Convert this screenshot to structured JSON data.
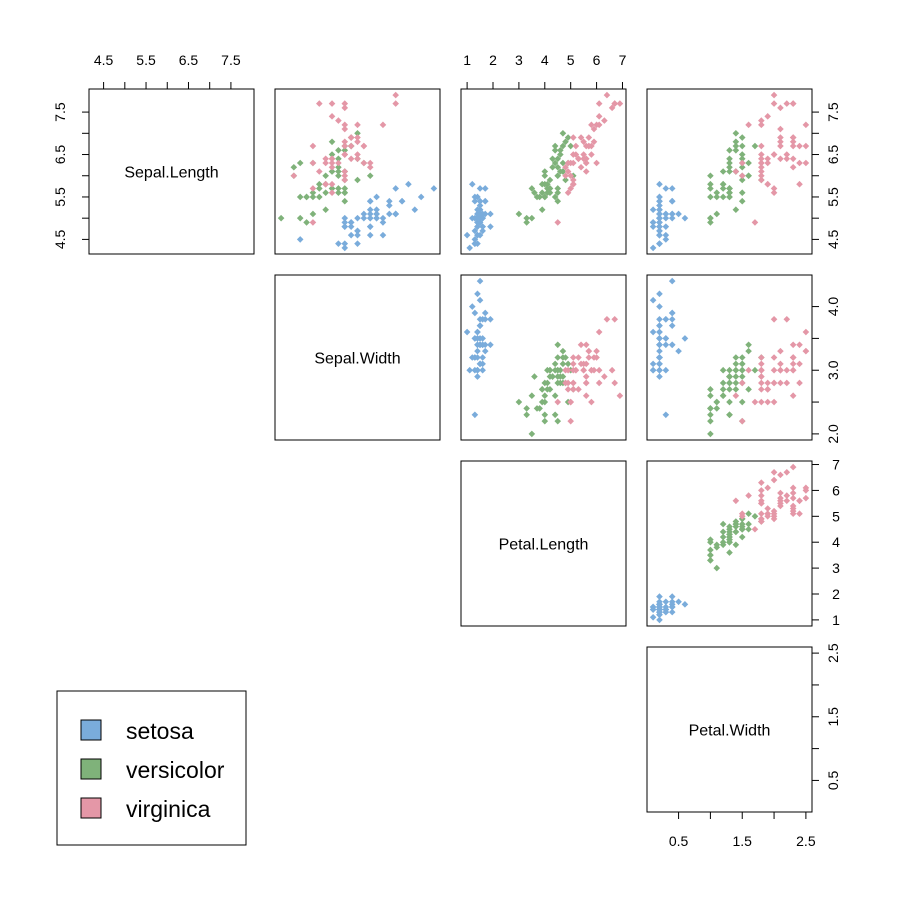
{
  "chart_data": {
    "type": "scatter",
    "title": "",
    "variables": [
      {
        "name": "Sepal.Length",
        "range": [
          4.3,
          7.9
        ],
        "ticks": [
          4.5,
          5.0,
          5.5,
          6.0,
          6.5,
          7.0,
          7.5
        ],
        "tick_labels": {
          "4.5": "4.5",
          "5.5": "5.5",
          "6.5": "6.5",
          "7.5": "7.5"
        }
      },
      {
        "name": "Sepal.Width",
        "range": [
          2.0,
          4.4
        ],
        "ticks": [
          2.0,
          2.5,
          3.0,
          3.5,
          4.0
        ],
        "tick_labels": {
          "2.0": "2.0",
          "3.0": "3.0",
          "4.0": "4.0"
        }
      },
      {
        "name": "Petal.Length",
        "range": [
          1.0,
          6.9
        ],
        "ticks": [
          1,
          2,
          3,
          4,
          5,
          6,
          7
        ],
        "tick_labels": {
          "1": "1",
          "2": "2",
          "3": "3",
          "4": "4",
          "5": "5",
          "6": "6",
          "7": "7"
        }
      },
      {
        "name": "Petal.Width",
        "range": [
          0.1,
          2.5
        ],
        "ticks": [
          0.5,
          1.0,
          1.5,
          2.0,
          2.5
        ],
        "tick_labels": {
          "0.5": "0.5",
          "1.5": "1.5",
          "2.5": "2.5"
        }
      }
    ],
    "series": [
      {
        "name": "setosa",
        "color": "#7aacdb",
        "points": [
          [
            5.1,
            3.5,
            1.4,
            0.2
          ],
          [
            4.9,
            3.0,
            1.4,
            0.2
          ],
          [
            4.7,
            3.2,
            1.3,
            0.2
          ],
          [
            4.6,
            3.1,
            1.5,
            0.2
          ],
          [
            5.0,
            3.6,
            1.4,
            0.2
          ],
          [
            5.4,
            3.9,
            1.7,
            0.4
          ],
          [
            4.6,
            3.4,
            1.4,
            0.3
          ],
          [
            5.0,
            3.4,
            1.5,
            0.2
          ],
          [
            4.4,
            2.9,
            1.4,
            0.2
          ],
          [
            4.9,
            3.1,
            1.5,
            0.1
          ],
          [
            5.4,
            3.7,
            1.5,
            0.2
          ],
          [
            4.8,
            3.4,
            1.6,
            0.2
          ],
          [
            4.8,
            3.0,
            1.4,
            0.1
          ],
          [
            4.3,
            3.0,
            1.1,
            0.1
          ],
          [
            5.8,
            4.0,
            1.2,
            0.2
          ],
          [
            5.7,
            4.4,
            1.5,
            0.4
          ],
          [
            5.4,
            3.9,
            1.3,
            0.4
          ],
          [
            5.1,
            3.5,
            1.4,
            0.3
          ],
          [
            5.7,
            3.8,
            1.7,
            0.3
          ],
          [
            5.1,
            3.8,
            1.5,
            0.3
          ],
          [
            5.4,
            3.4,
            1.7,
            0.2
          ],
          [
            5.1,
            3.7,
            1.5,
            0.4
          ],
          [
            4.6,
            3.6,
            1.0,
            0.2
          ],
          [
            5.1,
            3.3,
            1.7,
            0.5
          ],
          [
            4.8,
            3.4,
            1.9,
            0.2
          ],
          [
            5.0,
            3.0,
            1.6,
            0.2
          ],
          [
            5.0,
            3.4,
            1.6,
            0.4
          ],
          [
            5.2,
            3.5,
            1.5,
            0.2
          ],
          [
            5.2,
            3.4,
            1.4,
            0.2
          ],
          [
            4.7,
            3.2,
            1.6,
            0.2
          ],
          [
            4.8,
            3.1,
            1.6,
            0.2
          ],
          [
            5.4,
            3.4,
            1.5,
            0.4
          ],
          [
            5.2,
            4.1,
            1.5,
            0.1
          ],
          [
            5.5,
            4.2,
            1.4,
            0.2
          ],
          [
            4.9,
            3.1,
            1.5,
            0.2
          ],
          [
            5.0,
            3.2,
            1.2,
            0.2
          ],
          [
            5.5,
            3.5,
            1.3,
            0.2
          ],
          [
            4.9,
            3.6,
            1.4,
            0.1
          ],
          [
            4.4,
            3.0,
            1.3,
            0.2
          ],
          [
            5.1,
            3.4,
            1.5,
            0.2
          ],
          [
            5.0,
            3.5,
            1.3,
            0.3
          ],
          [
            4.5,
            2.3,
            1.3,
            0.3
          ],
          [
            4.4,
            3.2,
            1.3,
            0.2
          ],
          [
            5.0,
            3.5,
            1.6,
            0.6
          ],
          [
            5.1,
            3.8,
            1.9,
            0.4
          ],
          [
            4.8,
            3.0,
            1.4,
            0.3
          ],
          [
            5.1,
            3.8,
            1.6,
            0.2
          ],
          [
            4.6,
            3.2,
            1.4,
            0.2
          ],
          [
            5.3,
            3.7,
            1.5,
            0.2
          ],
          [
            5.0,
            3.3,
            1.4,
            0.2
          ]
        ]
      },
      {
        "name": "versicolor",
        "color": "#7fb27a",
        "points": [
          [
            7.0,
            3.2,
            4.7,
            1.4
          ],
          [
            6.4,
            3.2,
            4.5,
            1.5
          ],
          [
            6.9,
            3.1,
            4.9,
            1.5
          ],
          [
            5.5,
            2.3,
            4.0,
            1.3
          ],
          [
            6.5,
            2.8,
            4.6,
            1.5
          ],
          [
            5.7,
            2.8,
            4.5,
            1.3
          ],
          [
            6.3,
            3.3,
            4.7,
            1.6
          ],
          [
            4.9,
            2.4,
            3.3,
            1.0
          ],
          [
            6.6,
            2.9,
            4.6,
            1.3
          ],
          [
            5.2,
            2.7,
            3.9,
            1.4
          ],
          [
            5.0,
            2.0,
            3.5,
            1.0
          ],
          [
            5.9,
            3.0,
            4.2,
            1.5
          ],
          [
            6.0,
            2.2,
            4.0,
            1.0
          ],
          [
            6.1,
            2.9,
            4.7,
            1.4
          ],
          [
            5.6,
            2.9,
            3.6,
            1.3
          ],
          [
            6.7,
            3.1,
            4.4,
            1.4
          ],
          [
            5.6,
            3.0,
            4.5,
            1.5
          ],
          [
            5.8,
            2.7,
            4.1,
            1.0
          ],
          [
            6.2,
            2.2,
            4.5,
            1.5
          ],
          [
            5.6,
            2.5,
            3.9,
            1.1
          ],
          [
            5.9,
            3.2,
            4.8,
            1.8
          ],
          [
            6.1,
            2.8,
            4.0,
            1.3
          ],
          [
            6.3,
            2.5,
            4.9,
            1.5
          ],
          [
            6.1,
            2.8,
            4.7,
            1.2
          ],
          [
            6.4,
            2.9,
            4.3,
            1.3
          ],
          [
            6.6,
            3.0,
            4.4,
            1.4
          ],
          [
            6.8,
            2.8,
            4.8,
            1.4
          ],
          [
            6.7,
            3.0,
            5.0,
            1.7
          ],
          [
            6.0,
            2.9,
            4.5,
            1.5
          ],
          [
            5.7,
            2.6,
            3.5,
            1.0
          ],
          [
            5.5,
            2.4,
            3.8,
            1.1
          ],
          [
            5.5,
            2.4,
            3.7,
            1.0
          ],
          [
            5.8,
            2.7,
            3.9,
            1.2
          ],
          [
            6.0,
            2.7,
            5.1,
            1.6
          ],
          [
            5.4,
            3.0,
            4.5,
            1.5
          ],
          [
            6.0,
            3.4,
            4.5,
            1.6
          ],
          [
            6.7,
            3.1,
            4.7,
            1.5
          ],
          [
            6.3,
            2.3,
            4.4,
            1.3
          ],
          [
            5.6,
            3.0,
            4.1,
            1.3
          ],
          [
            5.5,
            2.5,
            4.0,
            1.3
          ],
          [
            5.5,
            2.6,
            4.4,
            1.2
          ],
          [
            6.1,
            3.0,
            4.6,
            1.4
          ],
          [
            5.8,
            2.6,
            4.0,
            1.2
          ],
          [
            5.0,
            2.3,
            3.3,
            1.0
          ],
          [
            5.6,
            2.7,
            4.2,
            1.3
          ],
          [
            5.7,
            3.0,
            4.2,
            1.2
          ],
          [
            5.7,
            2.9,
            4.2,
            1.3
          ],
          [
            6.2,
            2.9,
            4.3,
            1.3
          ],
          [
            5.1,
            2.5,
            3.0,
            1.1
          ],
          [
            5.7,
            2.8,
            4.1,
            1.3
          ]
        ]
      },
      {
        "name": "virginica",
        "color": "#e497a7",
        "points": [
          [
            6.3,
            3.3,
            6.0,
            2.5
          ],
          [
            5.8,
            2.7,
            5.1,
            1.9
          ],
          [
            7.1,
            3.0,
            5.9,
            2.1
          ],
          [
            6.3,
            2.9,
            5.6,
            1.8
          ],
          [
            6.5,
            3.0,
            5.8,
            2.2
          ],
          [
            7.6,
            3.0,
            6.6,
            2.1
          ],
          [
            4.9,
            2.5,
            4.5,
            1.7
          ],
          [
            7.3,
            2.9,
            6.3,
            1.8
          ],
          [
            6.7,
            2.5,
            5.8,
            1.8
          ],
          [
            7.2,
            3.6,
            6.1,
            2.5
          ],
          [
            6.5,
            3.2,
            5.1,
            2.0
          ],
          [
            6.4,
            2.7,
            5.3,
            1.9
          ],
          [
            6.8,
            3.0,
            5.5,
            2.1
          ],
          [
            5.7,
            2.5,
            5.0,
            2.0
          ],
          [
            5.8,
            2.8,
            5.1,
            2.4
          ],
          [
            6.4,
            3.2,
            5.3,
            2.3
          ],
          [
            6.5,
            3.0,
            5.5,
            1.8
          ],
          [
            7.7,
            3.8,
            6.7,
            2.2
          ],
          [
            7.7,
            2.6,
            6.9,
            2.3
          ],
          [
            6.0,
            2.2,
            5.0,
            1.5
          ],
          [
            6.9,
            3.2,
            5.7,
            2.3
          ],
          [
            5.6,
            2.8,
            4.9,
            2.0
          ],
          [
            7.7,
            2.8,
            6.7,
            2.0
          ],
          [
            6.3,
            2.7,
            4.9,
            1.8
          ],
          [
            6.7,
            3.3,
            5.7,
            2.1
          ],
          [
            7.2,
            3.2,
            6.0,
            1.8
          ],
          [
            6.2,
            2.8,
            4.8,
            1.8
          ],
          [
            6.1,
            3.0,
            4.9,
            1.8
          ],
          [
            6.4,
            2.8,
            5.6,
            2.1
          ],
          [
            7.2,
            3.0,
            5.8,
            1.6
          ],
          [
            7.4,
            2.8,
            6.1,
            1.9
          ],
          [
            7.9,
            3.8,
            6.4,
            2.0
          ],
          [
            6.4,
            2.8,
            5.6,
            2.2
          ],
          [
            6.3,
            2.8,
            5.1,
            1.5
          ],
          [
            6.1,
            2.6,
            5.6,
            1.4
          ],
          [
            7.7,
            3.0,
            6.1,
            2.3
          ],
          [
            6.3,
            3.4,
            5.6,
            2.4
          ],
          [
            6.4,
            3.1,
            5.5,
            1.8
          ],
          [
            6.0,
            3.0,
            4.8,
            1.8
          ],
          [
            6.9,
            3.1,
            5.4,
            2.1
          ],
          [
            6.7,
            3.1,
            5.6,
            2.4
          ],
          [
            6.9,
            3.1,
            5.1,
            2.3
          ],
          [
            5.8,
            2.7,
            5.1,
            1.9
          ],
          [
            6.8,
            3.2,
            5.9,
            2.3
          ],
          [
            6.7,
            3.3,
            5.7,
            2.5
          ],
          [
            6.7,
            3.0,
            5.2,
            2.3
          ],
          [
            6.3,
            2.5,
            5.0,
            1.9
          ],
          [
            6.5,
            3.0,
            5.2,
            2.0
          ],
          [
            6.2,
            3.4,
            5.4,
            2.3
          ],
          [
            5.9,
            3.0,
            5.1,
            1.8
          ]
        ]
      }
    ],
    "legend": {
      "entries": [
        "setosa",
        "versicolor",
        "virginica"
      ],
      "placement": "bottom-left"
    },
    "grid": false,
    "layout": "upper-triangle scatterplot matrix"
  }
}
